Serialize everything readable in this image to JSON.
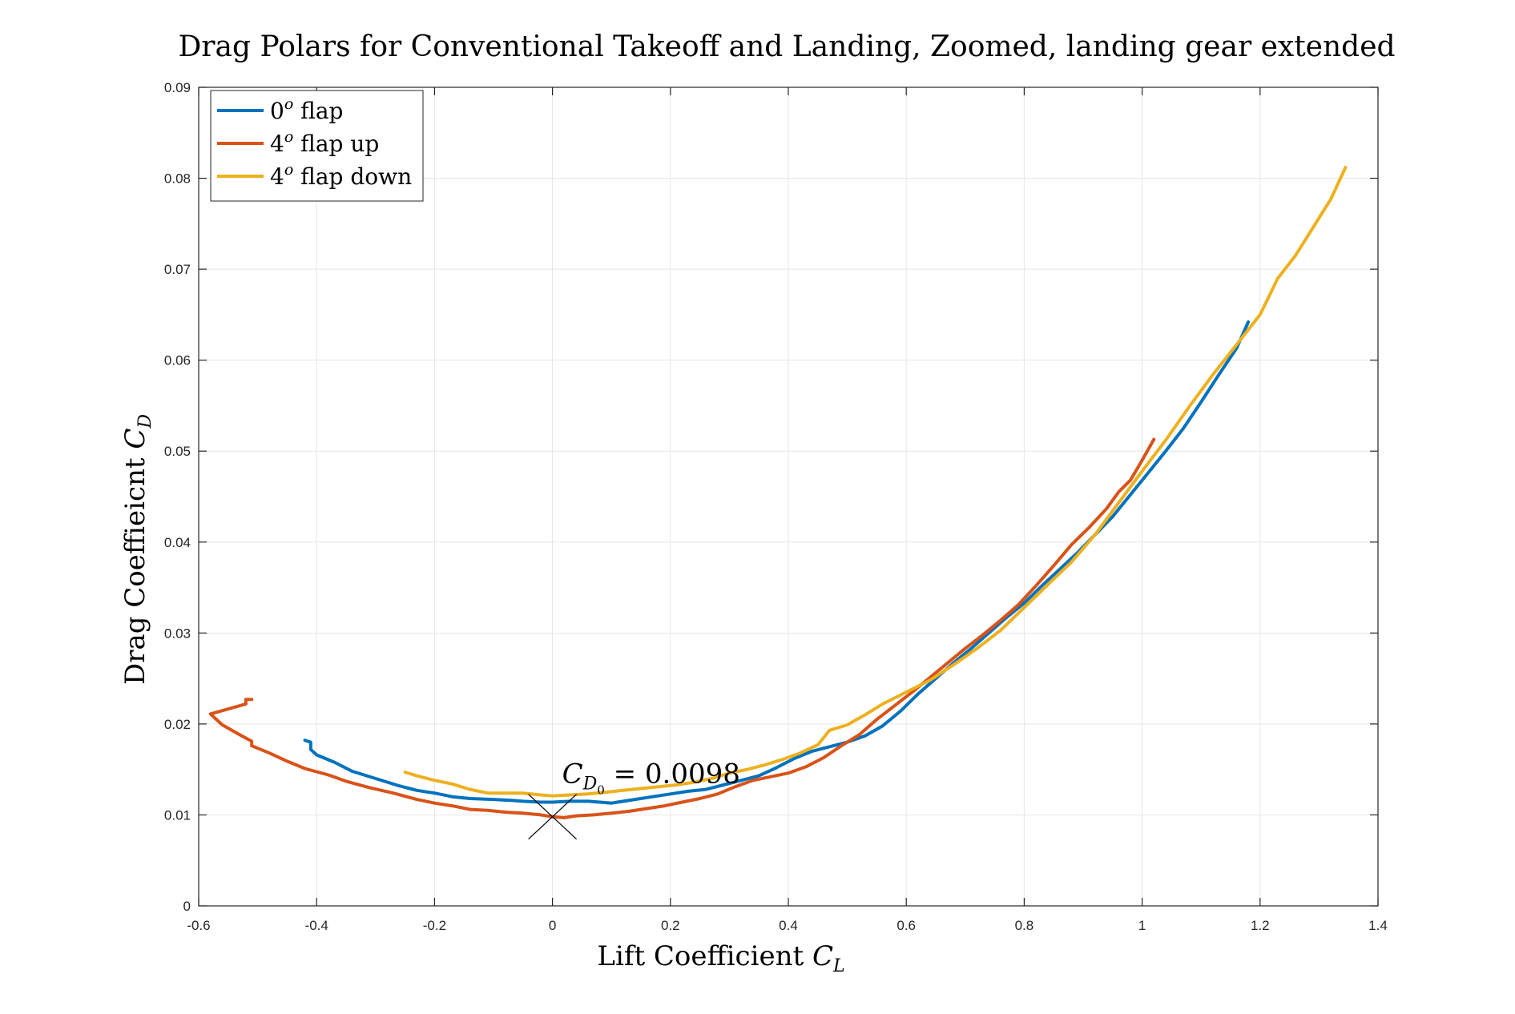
{
  "chart_data": {
    "type": "line",
    "title": "Drag Polars for Conventional Takeoff and Landing, Zoomed, landing gear extended",
    "xlabel": {
      "text": "Lift Coefficient ",
      "var": "C",
      "sub": "L"
    },
    "ylabel": {
      "text": "Drag Coeffieicnt ",
      "var": "C",
      "sub": "D"
    },
    "xlim": [
      -0.6,
      1.4
    ],
    "ylim": [
      0,
      0.09
    ],
    "xticks": [
      -0.6,
      -0.4,
      -0.2,
      0,
      0.2,
      0.4,
      0.6,
      0.8,
      1,
      1.2,
      1.4
    ],
    "xtick_labels": [
      "-0.6",
      "-0.4",
      "-0.2",
      "0",
      "0.2",
      "0.4",
      "0.6",
      "0.8",
      "1",
      "1.2",
      "1.4"
    ],
    "yticks": [
      0,
      0.01,
      0.02,
      0.03,
      0.04,
      0.05,
      0.06,
      0.07,
      0.08,
      0.09
    ],
    "ytick_labels": [
      "0",
      "0.01",
      "0.02",
      "0.03",
      "0.04",
      "0.05",
      "0.06",
      "0.07",
      "0.08",
      "0.09"
    ],
    "grid": true,
    "legend_position": "top-left",
    "series": [
      {
        "name": "0º flap",
        "legend": {
          "num": "0",
          "sup": "o",
          "text": " flap"
        },
        "color": "#0072BD",
        "points": [
          [
            -0.42,
            0.0182
          ],
          [
            -0.41,
            0.018
          ],
          [
            -0.41,
            0.0172
          ],
          [
            -0.4,
            0.0166
          ],
          [
            -0.37,
            0.0158
          ],
          [
            -0.34,
            0.0148
          ],
          [
            -0.3,
            0.014
          ],
          [
            -0.26,
            0.0132
          ],
          [
            -0.23,
            0.0127
          ],
          [
            -0.2,
            0.0124
          ],
          [
            -0.17,
            0.012
          ],
          [
            -0.14,
            0.0118
          ],
          [
            -0.1,
            0.0117
          ],
          [
            -0.07,
            0.0116
          ],
          [
            -0.05,
            0.0115
          ],
          [
            -0.02,
            0.0114
          ],
          [
            0,
            0.0114
          ],
          [
            0.03,
            0.0115
          ],
          [
            0.06,
            0.0115
          ],
          [
            0.08,
            0.0114
          ],
          [
            0.1,
            0.0113
          ],
          [
            0.11,
            0.0114
          ],
          [
            0.14,
            0.0117
          ],
          [
            0.17,
            0.012
          ],
          [
            0.2,
            0.0123
          ],
          [
            0.23,
            0.0126
          ],
          [
            0.26,
            0.0128
          ],
          [
            0.29,
            0.0133
          ],
          [
            0.32,
            0.0138
          ],
          [
            0.35,
            0.0143
          ],
          [
            0.38,
            0.0152
          ],
          [
            0.41,
            0.0162
          ],
          [
            0.44,
            0.017
          ],
          [
            0.47,
            0.0175
          ],
          [
            0.5,
            0.018
          ],
          [
            0.53,
            0.0187
          ],
          [
            0.56,
            0.0198
          ],
          [
            0.59,
            0.0214
          ],
          [
            0.62,
            0.0233
          ],
          [
            0.65,
            0.025
          ],
          [
            0.68,
            0.0267
          ],
          [
            0.71,
            0.0283
          ],
          [
            0.74,
            0.03
          ],
          [
            0.77,
            0.0317
          ],
          [
            0.8,
            0.0333
          ],
          [
            0.83,
            0.0352
          ],
          [
            0.86,
            0.037
          ],
          [
            0.89,
            0.0388
          ],
          [
            0.92,
            0.0408
          ],
          [
            0.95,
            0.0428
          ],
          [
            0.98,
            0.0452
          ],
          [
            1.01,
            0.0476
          ],
          [
            1.04,
            0.05
          ],
          [
            1.07,
            0.0525
          ],
          [
            1.1,
            0.0554
          ],
          [
            1.13,
            0.0584
          ],
          [
            1.16,
            0.0613
          ],
          [
            1.18,
            0.0642
          ]
        ]
      },
      {
        "name": "4º flap up",
        "legend": {
          "num": "4",
          "sup": "o",
          "text": " flap up"
        },
        "color": "#D95319",
        "points": [
          [
            -0.51,
            0.0227
          ],
          [
            -0.52,
            0.0227
          ],
          [
            -0.52,
            0.0222
          ],
          [
            -0.58,
            0.0211
          ],
          [
            -0.56,
            0.0199
          ],
          [
            -0.53,
            0.0188
          ],
          [
            -0.51,
            0.0181
          ],
          [
            -0.51,
            0.0176
          ],
          [
            -0.48,
            0.0168
          ],
          [
            -0.45,
            0.0159
          ],
          [
            -0.42,
            0.0151
          ],
          [
            -0.38,
            0.0144
          ],
          [
            -0.35,
            0.0137
          ],
          [
            -0.31,
            0.013
          ],
          [
            -0.27,
            0.0124
          ],
          [
            -0.23,
            0.0117
          ],
          [
            -0.2,
            0.0113
          ],
          [
            -0.17,
            0.011
          ],
          [
            -0.14,
            0.0106
          ],
          [
            -0.11,
            0.0105
          ],
          [
            -0.08,
            0.0103
          ],
          [
            -0.05,
            0.0102
          ],
          [
            -0.02,
            0.01
          ],
          [
            0,
            0.0098
          ],
          [
            0.02,
            0.0097
          ],
          [
            0.04,
            0.0099
          ],
          [
            0.07,
            0.01
          ],
          [
            0.1,
            0.0102
          ],
          [
            0.13,
            0.0104
          ],
          [
            0.16,
            0.0107
          ],
          [
            0.19,
            0.011
          ],
          [
            0.22,
            0.0114
          ],
          [
            0.25,
            0.0118
          ],
          [
            0.28,
            0.0123
          ],
          [
            0.31,
            0.0131
          ],
          [
            0.34,
            0.0138
          ],
          [
            0.37,
            0.0142
          ],
          [
            0.4,
            0.0146
          ],
          [
            0.43,
            0.0153
          ],
          [
            0.46,
            0.0163
          ],
          [
            0.49,
            0.0176
          ],
          [
            0.52,
            0.0188
          ],
          [
            0.55,
            0.0205
          ],
          [
            0.58,
            0.022
          ],
          [
            0.61,
            0.0235
          ],
          [
            0.64,
            0.0251
          ],
          [
            0.67,
            0.0267
          ],
          [
            0.7,
            0.0283
          ],
          [
            0.73,
            0.0298
          ],
          [
            0.76,
            0.0314
          ],
          [
            0.79,
            0.0331
          ],
          [
            0.82,
            0.0352
          ],
          [
            0.85,
            0.0374
          ],
          [
            0.88,
            0.0397
          ],
          [
            0.91,
            0.0416
          ],
          [
            0.94,
            0.0437
          ],
          [
            0.96,
            0.0455
          ],
          [
            0.98,
            0.0468
          ],
          [
            1.0,
            0.049
          ],
          [
            1.02,
            0.0513
          ]
        ]
      },
      {
        "name": "4º flap down",
        "legend": {
          "num": "4",
          "sup": "o",
          "text": " flap down"
        },
        "color": "#EDB120",
        "points": [
          [
            -0.25,
            0.0147
          ],
          [
            -0.23,
            0.0143
          ],
          [
            -0.2,
            0.0138
          ],
          [
            -0.17,
            0.0134
          ],
          [
            -0.14,
            0.0128
          ],
          [
            -0.11,
            0.0124
          ],
          [
            -0.08,
            0.0124
          ],
          [
            -0.05,
            0.0124
          ],
          [
            -0.02,
            0.0122
          ],
          [
            0,
            0.0121
          ],
          [
            0.03,
            0.0122
          ],
          [
            0.06,
            0.0123
          ],
          [
            0.09,
            0.0125
          ],
          [
            0.12,
            0.0127
          ],
          [
            0.15,
            0.0129
          ],
          [
            0.18,
            0.0131
          ],
          [
            0.21,
            0.0133
          ],
          [
            0.24,
            0.0136
          ],
          [
            0.27,
            0.014
          ],
          [
            0.3,
            0.0146
          ],
          [
            0.33,
            0.015
          ],
          [
            0.36,
            0.0155
          ],
          [
            0.39,
            0.0161
          ],
          [
            0.42,
            0.0168
          ],
          [
            0.45,
            0.0177
          ],
          [
            0.47,
            0.0193
          ],
          [
            0.5,
            0.0199
          ],
          [
            0.53,
            0.021
          ],
          [
            0.56,
            0.0222
          ],
          [
            0.6,
            0.0235
          ],
          [
            0.64,
            0.0248
          ],
          [
            0.68,
            0.0265
          ],
          [
            0.72,
            0.0283
          ],
          [
            0.76,
            0.0303
          ],
          [
            0.8,
            0.0328
          ],
          [
            0.84,
            0.0353
          ],
          [
            0.88,
            0.0378
          ],
          [
            0.92,
            0.0408
          ],
          [
            0.96,
            0.0443
          ],
          [
            1.0,
            0.0478
          ],
          [
            1.04,
            0.0512
          ],
          [
            1.08,
            0.0549
          ],
          [
            1.12,
            0.0584
          ],
          [
            1.16,
            0.0617
          ],
          [
            1.2,
            0.065
          ],
          [
            1.23,
            0.069
          ],
          [
            1.26,
            0.0715
          ],
          [
            1.29,
            0.0746
          ],
          [
            1.32,
            0.0777
          ],
          [
            1.345,
            0.0812
          ]
        ]
      }
    ],
    "annotation": {
      "var": "C",
      "sub": "D",
      "subsub": "0",
      "text": " = 0.0098",
      "marker_x": 0,
      "marker_y": 0.0098
    }
  }
}
